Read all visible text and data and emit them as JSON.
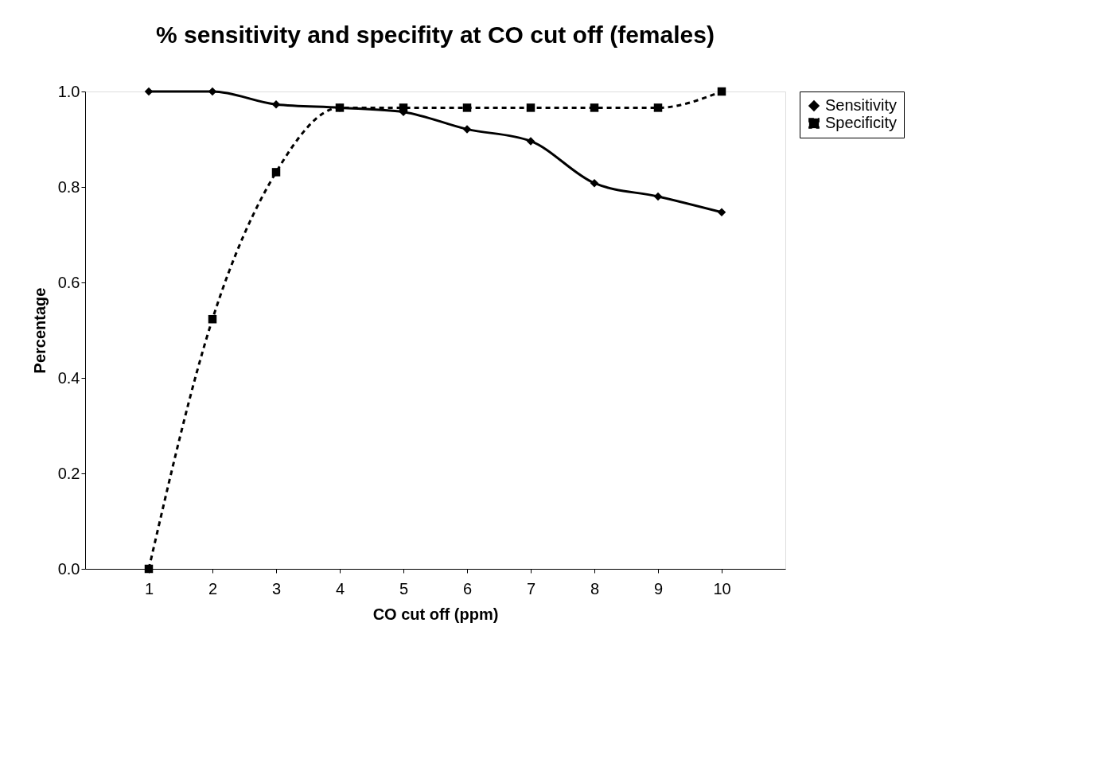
{
  "chart_data": {
    "type": "line",
    "title": "% sensitivity and specifity at CO cut off (females)",
    "xlabel": "CO cut off (ppm)",
    "ylabel": "Percentage",
    "categories": [
      "1",
      "2",
      "3",
      "4",
      "5",
      "6",
      "7",
      "8",
      "9",
      "10"
    ],
    "series": [
      {
        "name": "Sensitivity",
        "color": "#000000",
        "marker": "diamond",
        "line_style": "solid",
        "values": [
          1.0,
          1.0,
          0.973,
          0.966,
          0.957,
          0.921,
          0.896,
          0.808,
          0.78,
          0.747
        ]
      },
      {
        "name": "Specificity",
        "color": "#000000",
        "marker": "square",
        "line_style": "dashed",
        "values": [
          0.0,
          0.523,
          0.831,
          0.966,
          0.966,
          0.966,
          0.966,
          0.966,
          0.966,
          1.0
        ]
      }
    ],
    "ylim": [
      0,
      1.0
    ],
    "yticks": [
      {
        "value": 0,
        "label": "0.0"
      },
      {
        "value": 0.2,
        "label": "0.2"
      },
      {
        "value": 0.4,
        "label": "0.4"
      },
      {
        "value": 0.6,
        "label": "0.6"
      },
      {
        "value": 0.8,
        "label": "0.8"
      },
      {
        "value": 1.0,
        "label": "1.0"
      }
    ],
    "grid": false,
    "legend": "right"
  }
}
